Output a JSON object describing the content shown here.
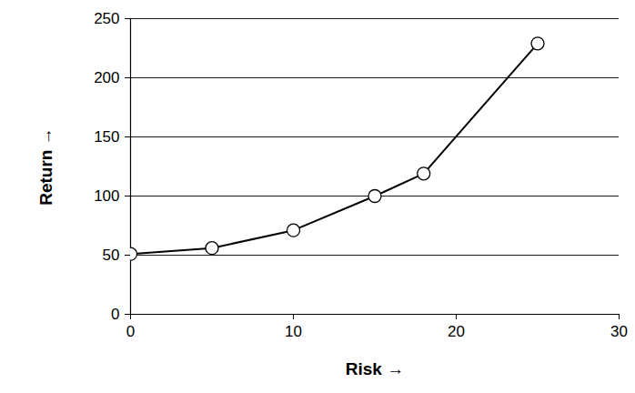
{
  "chart_data": {
    "type": "line",
    "x": [
      0,
      5,
      10,
      15,
      18,
      25
    ],
    "values": [
      51,
      56,
      71,
      100,
      119,
      229
    ],
    "x_label": "Risk",
    "y_label": "Return",
    "xlim": [
      0,
      30
    ],
    "xticks": [
      0,
      10,
      20,
      30
    ],
    "ylim": [
      0,
      250
    ],
    "yticks": [
      0,
      50,
      100,
      150,
      200,
      250
    ],
    "grid": true,
    "color": "#000000",
    "marker": "circle",
    "line_style": "solid"
  }
}
